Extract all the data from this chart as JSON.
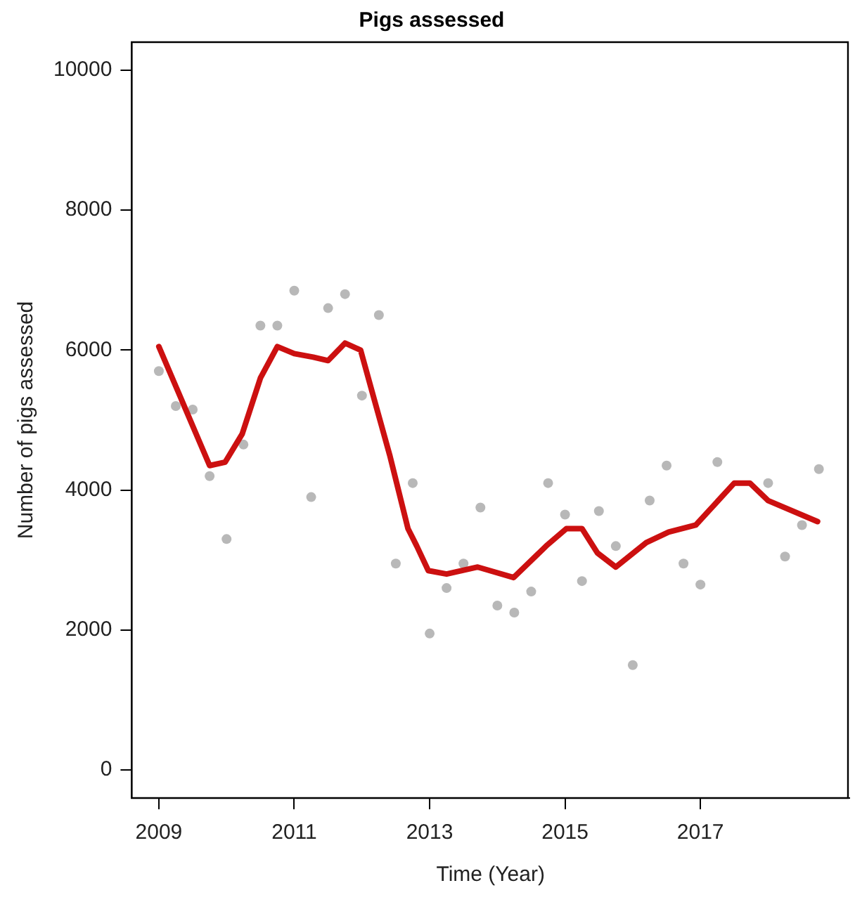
{
  "chart_data": {
    "type": "scatter",
    "title": "Pigs assessed",
    "xlabel": "Time (Year)",
    "ylabel": "Number of pigs assessed",
    "xlim": [
      2008.6,
      2019.2
    ],
    "xticks": [
      2009,
      2011,
      2013,
      2015,
      2017
    ],
    "ylim": [
      -400,
      10400
    ],
    "yticks": [
      0,
      2000,
      4000,
      6000,
      8000,
      10000
    ],
    "grid": false,
    "legend": false,
    "series": [
      {
        "marker": "circle",
        "color": "#b8b8b8",
        "x": [
          2009,
          2009.25,
          2009.5,
          2009.75,
          2010,
          2010.25,
          2010.5,
          2010.75,
          2011,
          2011.25,
          2011.5,
          2011.75,
          2012,
          2012.25,
          2012.5,
          2012.75,
          2013,
          2013.25,
          2013.5,
          2013.75,
          2014,
          2014.25,
          2014.5,
          2014.75,
          2015,
          2015.25,
          2015.5,
          2015.75,
          2016,
          2016.25,
          2016.5,
          2016.75,
          2017,
          2017.25,
          2018,
          2018.25,
          2018.5,
          2018.75
        ],
        "values": [
          5700,
          5200,
          5150,
          4200,
          3300,
          4650,
          6350,
          6350,
          6850,
          3900,
          6600,
          6800,
          5350,
          6500,
          2950,
          4100,
          1950,
          2600,
          2950,
          3750,
          2350,
          2250,
          2550,
          4100,
          3650,
          2700,
          3700,
          3200,
          1500,
          3850,
          4350,
          2950,
          2650,
          4400,
          4100,
          3050,
          3500,
          4300
        ]
      },
      {
        "type": "line",
        "color": "#cc1010",
        "x": [
          2009,
          2009.75,
          2009.98,
          2010.23,
          2010.5,
          2010.75,
          2011,
          2011.28,
          2011.5,
          2011.75,
          2011.98,
          2012.18,
          2012.41,
          2012.68,
          2012.81,
          2012.98,
          2013.25,
          2013.71,
          2014.24,
          2014.72,
          2015.02,
          2015.25,
          2015.48,
          2015.75,
          2016.2,
          2016.53,
          2016.93,
          2017.5,
          2017.73,
          2018,
          2018.73
        ],
        "values": [
          6050,
          4350,
          4400,
          4800,
          5600,
          6050,
          5950,
          5900,
          5850,
          6100,
          6000,
          5300,
          4500,
          3450,
          3200,
          2850,
          2800,
          2900,
          2750,
          3200,
          3450,
          3450,
          3100,
          2900,
          3250,
          3400,
          3500,
          4100,
          4100,
          3850,
          3550
        ]
      }
    ]
  }
}
